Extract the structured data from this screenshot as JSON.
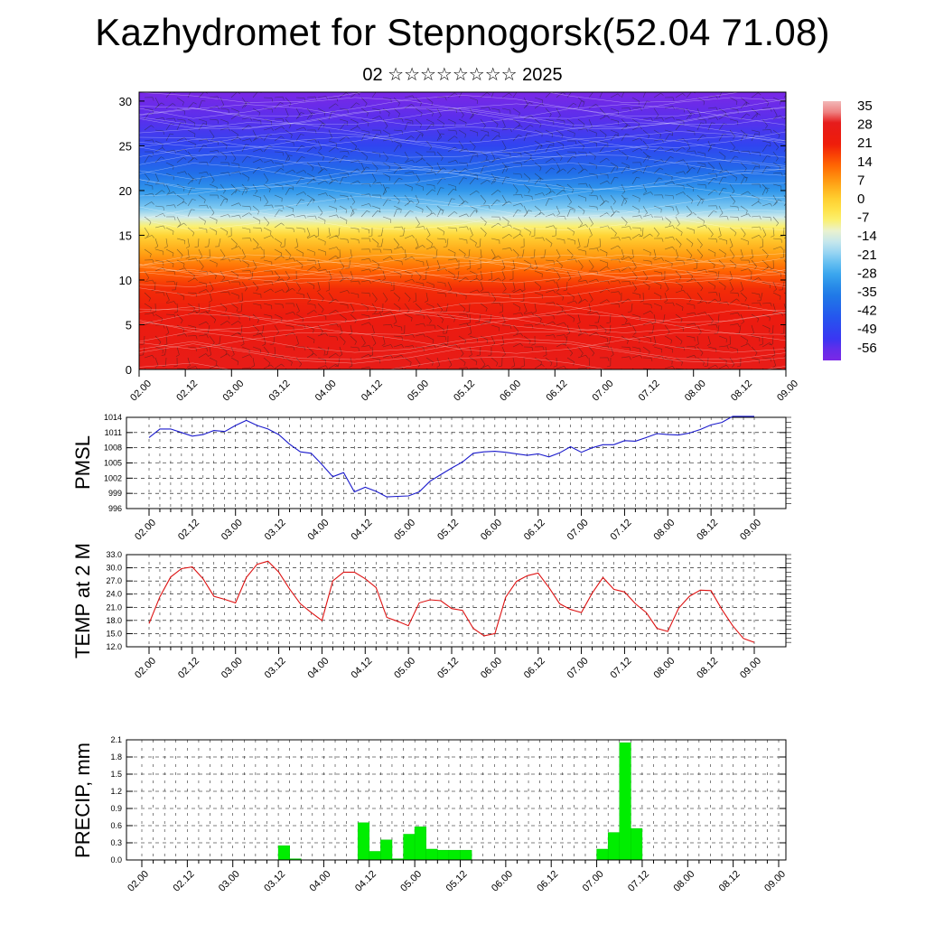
{
  "header": {
    "title": "Kazhydromet for Stepnogorsk(52.04 71.08)",
    "subtitle": "02 ☆☆☆☆☆☆☆☆ 2025"
  },
  "colors": {
    "pmsl_line": "#1a1acc",
    "temp_line": "#dd1111",
    "precip_bar": "#00ee00",
    "precip_bar_edge": "#00cc00"
  },
  "chart_data": [
    {
      "type": "heatmap",
      "title": "",
      "xlabel": "",
      "ylabel": "",
      "x_ticks": [
        "02.00",
        "02.12",
        "03.00",
        "03.12",
        "04.00",
        "04.12",
        "05.00",
        "05.12",
        "06.00",
        "06.12",
        "07.00",
        "07.12",
        "08.00",
        "08.12",
        "09.00"
      ],
      "y_ticks": [
        0,
        5,
        10,
        15,
        20,
        25,
        30
      ],
      "ylim": [
        0,
        31
      ],
      "colorbar_ticks": [
        "35",
        "28",
        "21",
        "14",
        "7",
        "0",
        "-7",
        "-14",
        "-21",
        "-28",
        "-35",
        "-42",
        "-49",
        "-56"
      ],
      "vertical_temperature_profile": {
        "level": [
          0,
          3,
          6,
          9,
          11,
          13,
          15,
          16,
          17,
          18,
          20,
          22,
          25,
          28,
          31
        ],
        "value": [
          28,
          26,
          24,
          20,
          14,
          7,
          0,
          -7,
          -14,
          -21,
          -30,
          -38,
          -48,
          -55,
          -58
        ]
      },
      "overlay": "wind barbs and streamlines"
    },
    {
      "type": "line",
      "title": "",
      "xlabel": "",
      "ylabel": "PMSL",
      "x": [
        "02.00",
        "02.03",
        "02.06",
        "02.09",
        "02.12",
        "02.15",
        "02.18",
        "02.21",
        "03.00",
        "03.03",
        "03.06",
        "03.09",
        "03.12",
        "03.15",
        "03.18",
        "03.21",
        "04.00",
        "04.03",
        "04.06",
        "04.09",
        "04.12",
        "04.15",
        "04.18",
        "04.21",
        "05.00",
        "05.03",
        "05.06",
        "05.09",
        "05.12",
        "05.15",
        "05.18",
        "05.21",
        "06.00",
        "06.03",
        "06.06",
        "06.09",
        "06.12",
        "06.15",
        "06.18",
        "06.21",
        "07.00",
        "07.03",
        "07.06",
        "07.09",
        "07.12",
        "07.15",
        "07.18",
        "07.21",
        "08.00",
        "08.03",
        "08.06",
        "08.09",
        "08.12",
        "08.15",
        "08.18",
        "08.21",
        "09.00"
      ],
      "values": [
        1010,
        1011.7,
        1011.7,
        1011,
        1010.3,
        1010.6,
        1011.4,
        1011.2,
        1012.4,
        1013.4,
        1012.4,
        1011.7,
        1010.6,
        1008.7,
        1007.2,
        1006.9,
        1004.7,
        1002.3,
        1003.1,
        999.3,
        1000.2,
        999.4,
        998.3,
        998.4,
        998.5,
        999.3,
        1001.4,
        1002.7,
        1004.0,
        1005.2,
        1006.9,
        1007.2,
        1007.3,
        1007.1,
        1006.8,
        1006.5,
        1006.8,
        1006.2,
        1007.0,
        1008.2,
        1007.1,
        1008.0,
        1008.6,
        1008.6,
        1009.4,
        1009.3,
        1010.0,
        1010.8,
        1010.6,
        1010.5,
        1010.9,
        1011.6,
        1012.5,
        1013.0,
        1014.2,
        1014.2,
        1014.2
      ],
      "y_ticks": [
        "1014",
        "1011",
        "1008",
        "1005",
        "1002",
        "999",
        "996"
      ],
      "ylim": [
        996,
        1014
      ]
    },
    {
      "type": "line",
      "title": "",
      "xlabel": "",
      "ylabel": "TEMP at 2 M",
      "x": [
        "02.00",
        "02.03",
        "02.06",
        "02.09",
        "02.12",
        "02.15",
        "02.18",
        "02.21",
        "03.00",
        "03.03",
        "03.06",
        "03.09",
        "03.12",
        "03.15",
        "03.18",
        "03.21",
        "04.00",
        "04.03",
        "04.06",
        "04.09",
        "04.12",
        "04.15",
        "04.18",
        "04.21",
        "05.00",
        "05.03",
        "05.06",
        "05.09",
        "05.12",
        "05.15",
        "05.18",
        "05.21",
        "06.00",
        "06.03",
        "06.06",
        "06.09",
        "06.12",
        "06.15",
        "06.18",
        "06.21",
        "07.00",
        "07.03",
        "07.06",
        "07.09",
        "07.12",
        "07.15",
        "07.18",
        "07.21",
        "08.00",
        "08.03",
        "08.06",
        "08.09",
        "08.12",
        "08.15",
        "08.18",
        "08.21",
        "09.00"
      ],
      "values": [
        17.3,
        23.4,
        27.9,
        29.8,
        30.2,
        27.5,
        23.5,
        22.8,
        22.0,
        27.8,
        30.8,
        31.5,
        29.0,
        25.2,
        21.8,
        19.8,
        18.0,
        27.0,
        29.0,
        29.0,
        27.5,
        25.5,
        18.7,
        17.8,
        16.8,
        22.0,
        22.7,
        22.5,
        20.7,
        20.3,
        16.2,
        14.5,
        15.0,
        23.3,
        26.9,
        28.2,
        28.8,
        25.5,
        21.8,
        20.5,
        19.8,
        24.2,
        27.8,
        25.1,
        24.5,
        21.8,
        19.8,
        16.2,
        15.5,
        20.8,
        23.5,
        24.9,
        24.8,
        20.5,
        16.8,
        13.9,
        13.0
      ],
      "y_ticks": [
        "33.0",
        "30.0",
        "27.0",
        "24.0",
        "21.0",
        "18.0",
        "15.0",
        "12.0"
      ],
      "ylim": [
        12,
        33
      ]
    },
    {
      "type": "bar",
      "title": "",
      "xlabel": "",
      "ylabel": "PRECIP, mm",
      "categories": [
        "03.12",
        "03.15",
        "04.09",
        "04.12",
        "04.15",
        "04.18",
        "04.21",
        "05.00",
        "05.03",
        "05.06",
        "05.09",
        "05.12",
        "07.00",
        "07.03",
        "07.06",
        "07.09"
      ],
      "values": [
        0.25,
        0.02,
        0.65,
        0.15,
        0.35,
        0.02,
        0.45,
        0.58,
        0.19,
        0.17,
        0.17,
        0.17,
        0.19,
        0.48,
        2.05,
        0.55
      ],
      "y_ticks": [
        "2.1",
        "1.8",
        "1.5",
        "1.2",
        "0.9",
        "0.6",
        "0.3",
        "0.0"
      ],
      "ylim": [
        0,
        2.1
      ]
    }
  ]
}
